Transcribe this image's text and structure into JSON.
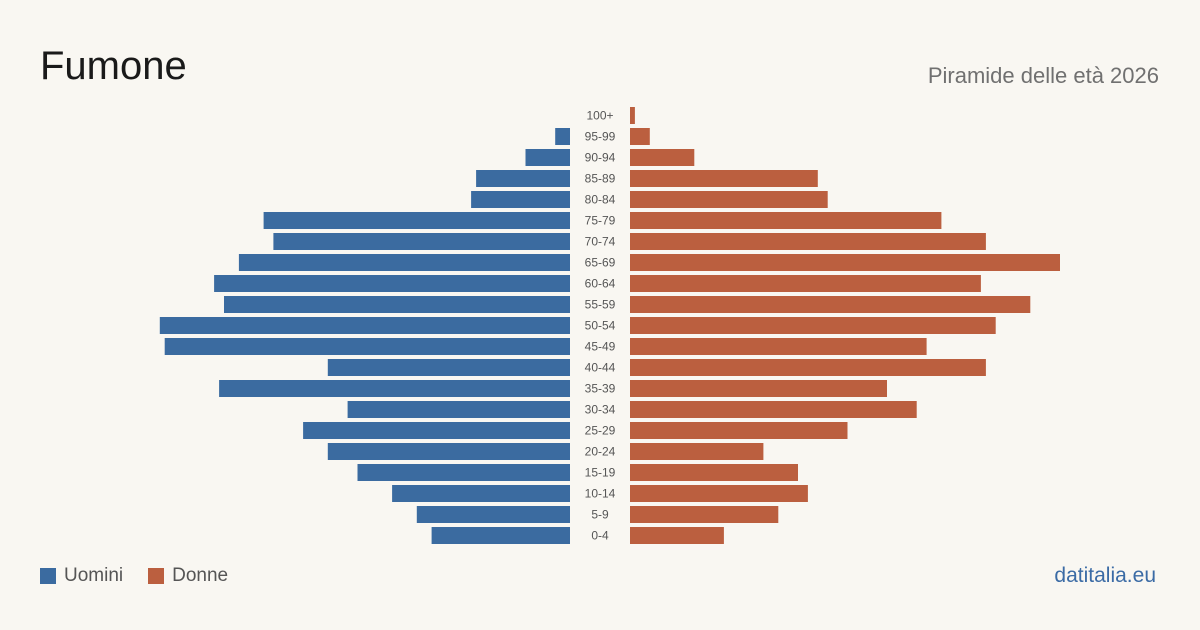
{
  "header": {
    "title": "Fumone",
    "subtitle": "Piramide delle età 2026"
  },
  "legend": {
    "men_label": "Uomini",
    "women_label": "Donne"
  },
  "footer": {
    "source": "datitalia.eu"
  },
  "colors": {
    "men": "#3b6ba0",
    "women": "#bb5f3f",
    "background": "#f9f7f2"
  },
  "chart_data": {
    "type": "bar",
    "orientation": "horizontal-pyramid",
    "title": "Fumone",
    "subtitle": "Piramide delle età 2026",
    "categories": [
      "100+",
      "95-99",
      "90-94",
      "85-89",
      "80-84",
      "75-79",
      "70-74",
      "65-69",
      "60-64",
      "55-59",
      "50-54",
      "45-49",
      "40-44",
      "35-39",
      "30-34",
      "25-29",
      "20-24",
      "15-19",
      "10-14",
      "5-9",
      "0-4"
    ],
    "series": [
      {
        "name": "Uomini",
        "side": "left",
        "values": [
          0,
          3,
          9,
          19,
          20,
          62,
          60,
          67,
          72,
          70,
          83,
          82,
          49,
          71,
          45,
          54,
          49,
          43,
          36,
          31,
          28
        ]
      },
      {
        "name": "Donne",
        "side": "right",
        "values": [
          1,
          4,
          13,
          38,
          40,
          63,
          72,
          87,
          71,
          81,
          74,
          60,
          72,
          52,
          58,
          44,
          27,
          34,
          36,
          30,
          19
        ]
      }
    ],
    "xlim": [
      0,
      87
    ],
    "grid": false,
    "legend_position": "bottom-left"
  }
}
